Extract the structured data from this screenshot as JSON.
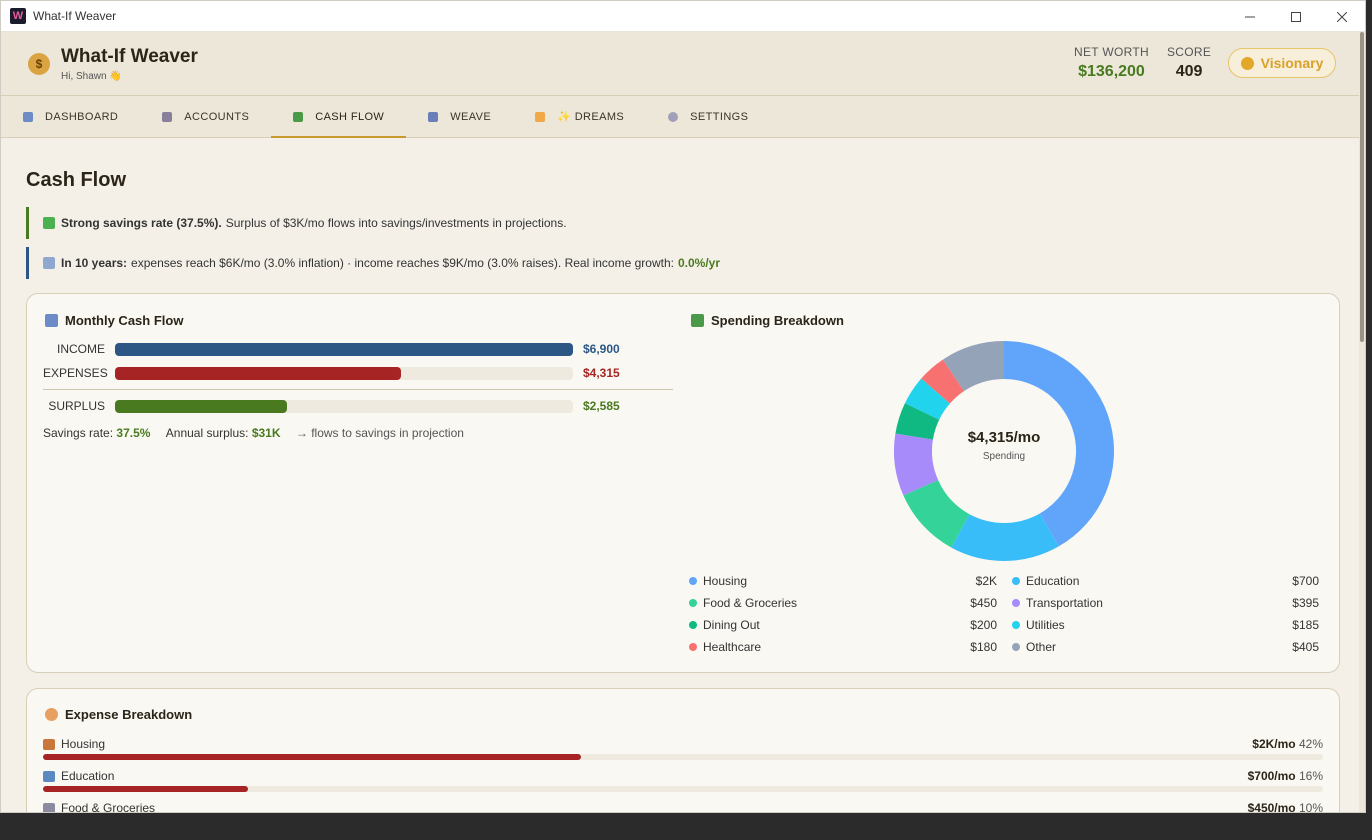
{
  "window": {
    "title": "What-If Weaver"
  },
  "header": {
    "title": "What-If Weaver",
    "greeting": "Hi, Shawn 👋",
    "net_worth_label": "NET WORTH",
    "net_worth": "$136,200",
    "score_label": "SCORE",
    "score": "409",
    "badge": "Visionary"
  },
  "tabs": [
    {
      "label": "DASHBOARD"
    },
    {
      "label": "ACCOUNTS"
    },
    {
      "label": "CASH FLOW"
    },
    {
      "label": "WEAVE"
    },
    {
      "label": "✨ DREAMS"
    },
    {
      "label": "SETTINGS"
    }
  ],
  "page": {
    "title": "Cash Flow",
    "alert1_bold": "Strong savings rate (37.5%).",
    "alert1_text": "Surplus of $3K/mo flows into savings/investments in projections.",
    "alert2_bold": "In 10 years:",
    "alert2_text": "expenses reach $6K/mo (3.0% inflation) · income reaches $9K/mo (3.0% raises). Real income growth:",
    "alert2_value": "0.0%/yr"
  },
  "monthly": {
    "title": "Monthly Cash Flow",
    "rows": [
      {
        "label": "INCOME",
        "value": "$6,900",
        "fraction": 1.0,
        "color": "#2c5785"
      },
      {
        "label": "EXPENSES",
        "value": "$4,315",
        "fraction": 0.625,
        "color": "#a62424"
      },
      {
        "label": "SURPLUS",
        "value": "$2,585",
        "fraction": 0.375,
        "color": "#4a7a1f"
      }
    ],
    "savings_rate_label": "Savings rate:",
    "savings_rate": "37.5%",
    "annual_surplus_label": "Annual surplus:",
    "annual_surplus": "$31K",
    "note": "→ flows to savings in projection"
  },
  "spending": {
    "title": "Spending Breakdown",
    "center_value": "$4,315/mo",
    "center_label": "Spending",
    "items": [
      {
        "name": "Housing",
        "value": "$2K",
        "amount": 1800,
        "color": "#60a5fa"
      },
      {
        "name": "Education",
        "value": "$700",
        "amount": 700,
        "color": "#38bdf8"
      },
      {
        "name": "Food & Groceries",
        "value": "$450",
        "amount": 450,
        "color": "#34d399"
      },
      {
        "name": "Transportation",
        "value": "$395",
        "amount": 395,
        "color": "#a78bfa"
      },
      {
        "name": "Dining Out",
        "value": "$200",
        "amount": 200,
        "color": "#10b981"
      },
      {
        "name": "Utilities",
        "value": "$185",
        "amount": 185,
        "color": "#22d3ee"
      },
      {
        "name": "Healthcare",
        "value": "$180",
        "amount": 180,
        "color": "#f87171"
      },
      {
        "name": "Other",
        "value": "$405",
        "amount": 405,
        "color": "#94a3b8"
      }
    ]
  },
  "expense_breakdown": {
    "title": "Expense Breakdown",
    "rows": [
      {
        "label": "Housing",
        "amount": "$2K/mo",
        "pct": "42%",
        "fraction": 0.42
      },
      {
        "label": "Education",
        "amount": "$700/mo",
        "pct": "16%",
        "fraction": 0.16
      },
      {
        "label": "Food & Groceries",
        "amount": "$450/mo",
        "pct": "10%",
        "fraction": 0.1
      }
    ]
  }
}
